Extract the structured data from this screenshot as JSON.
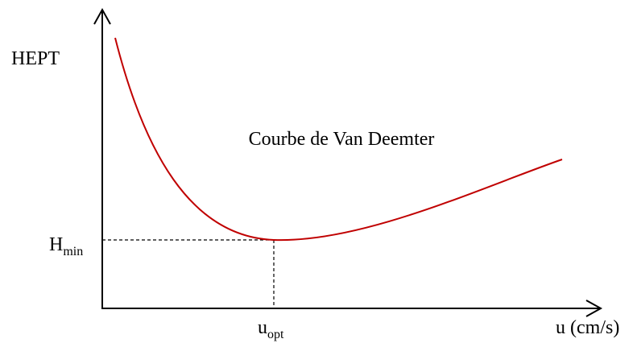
{
  "diagram": {
    "y_axis_label": "HEPT",
    "x_axis_label": "u (cm/s)",
    "curve_label": "Courbe de Van Deemter",
    "min_marker": {
      "base": "H",
      "sub": "min"
    },
    "opt_marker": {
      "base": "u",
      "sub": "opt"
    }
  }
}
